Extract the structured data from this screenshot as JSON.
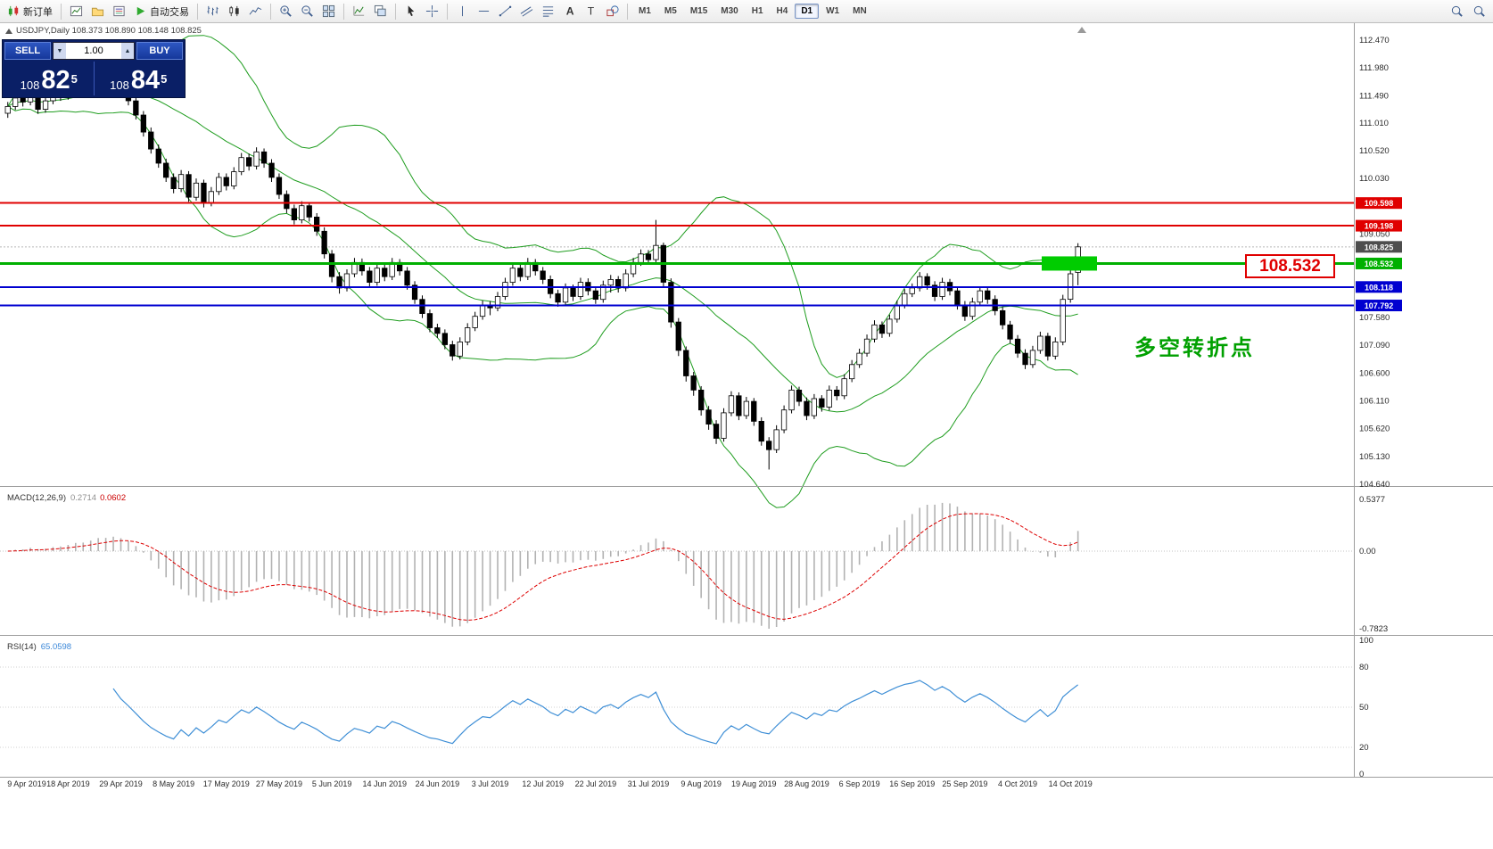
{
  "toolbar": {
    "groups": [
      {
        "items": [
          {
            "name": "new-order-button",
            "icon": "new-order",
            "label": "新订单"
          }
        ]
      },
      {
        "items": [
          {
            "name": "new-chart-button",
            "icon": "new-chart"
          },
          {
            "name": "profiles-button",
            "icon": "profiles"
          },
          {
            "name": "market-watch-button",
            "icon": "market-watch"
          },
          {
            "name": "auto-trading-button",
            "icon": "auto-play",
            "label": "自动交易"
          }
        ]
      },
      {
        "items": [
          {
            "name": "bar-chart-button",
            "icon": "bars"
          },
          {
            "name": "candlestick-chart-button",
            "icon": "candles"
          },
          {
            "name": "line-chart-button",
            "icon": "line-chart"
          }
        ]
      },
      {
        "items": [
          {
            "name": "zoom-in-button",
            "icon": "zoom-in"
          },
          {
            "name": "zoom-out-button",
            "icon": "zoom-out"
          },
          {
            "name": "tile-windows-button",
            "icon": "tile"
          }
        ]
      },
      {
        "items": [
          {
            "name": "indicators-button",
            "icon": "indicators"
          },
          {
            "name": "cascade-windows-button",
            "icon": "cascade"
          }
        ]
      },
      {
        "items": [
          {
            "name": "cursor-button",
            "icon": "cursor"
          },
          {
            "name": "crosshair-button",
            "icon": "crosshair"
          }
        ]
      },
      {
        "items": [
          {
            "name": "vertical-line-button",
            "icon": "vline"
          },
          {
            "name": "horizontal-line-button",
            "icon": "hline"
          },
          {
            "name": "trendline-button",
            "icon": "trendline"
          },
          {
            "name": "channel-button",
            "icon": "channel"
          },
          {
            "name": "fibonacci-button",
            "icon": "fibonacci"
          },
          {
            "name": "text-button",
            "icon": "text"
          },
          {
            "name": "text-label-button",
            "icon": "label"
          },
          {
            "name": "shapes-button",
            "icon": "shapes"
          }
        ]
      }
    ],
    "timeframes": {
      "list": [
        "M1",
        "M5",
        "M15",
        "M30",
        "H1",
        "H4",
        "D1",
        "W1",
        "MN"
      ],
      "active": "D1"
    },
    "right_items": [
      {
        "name": "search-button",
        "icon": "search"
      },
      {
        "name": "find-symbol-button",
        "icon": "search"
      }
    ]
  },
  "chart": {
    "symbol_line": "USDJPY,Daily 108.373 108.890 108.148 108.825",
    "trade_panel": {
      "sell_label": "SELL",
      "buy_label": "BUY",
      "volume": "1.00",
      "down_glyph": "▼",
      "up_glyph": "▲",
      "sell_price": {
        "prefix": "108",
        "big": "82",
        "sup": "5"
      },
      "buy_price": {
        "prefix": "108",
        "big": "84",
        "sup": "5"
      }
    },
    "price_ticks": [
      "112.470",
      "111.980",
      "111.490",
      "111.010",
      "110.520",
      "110.030",
      "109.550",
      "109.050",
      "108.570",
      "108.080",
      "107.580",
      "107.090",
      "106.600",
      "106.110",
      "105.620",
      "105.130",
      "104.640"
    ],
    "hlines": [
      {
        "price": 109.598,
        "label": "109.598",
        "color": "#e00000",
        "width": 2
      },
      {
        "price": 109.198,
        "label": "109.198",
        "color": "#e00000",
        "width": 2
      },
      {
        "price": 108.532,
        "label": "108.532",
        "color": "#00b000",
        "width": 3
      },
      {
        "price": 108.118,
        "label": "108.118",
        "color": "#0000d0",
        "width": 2
      },
      {
        "price": 107.792,
        "label": "107.792",
        "color": "#0000d0",
        "width": 2
      }
    ],
    "current_price": {
      "label": "108.825",
      "value": 108.825,
      "color": "#4d4d4d"
    },
    "annotations": {
      "price_label": "108.532",
      "note": "多空转折点",
      "highlight_price": 108.532
    }
  },
  "macd": {
    "title": "MACD(12,26,9)",
    "main": "0.2714",
    "signal": "0.0602",
    "scale": [
      "0.5377",
      "0.00",
      "-0.7823"
    ]
  },
  "rsi": {
    "title": "RSI(14)",
    "value": "65.0598",
    "scale": [
      "100",
      "80",
      "50",
      "20",
      "0"
    ]
  },
  "chart_data": {
    "type": "candlestick",
    "symbol": "USDJPY",
    "timeframe": "Daily",
    "current_bar": {
      "open": 108.373,
      "high": 108.89,
      "low": 108.148,
      "close": 108.825
    },
    "y_range": [
      104.64,
      112.74
    ],
    "x_labels": [
      "9 Apr 2019",
      "18 Apr 2019",
      "29 Apr 2019",
      "8 May 2019",
      "17 May 2019",
      "27 May 2019",
      "5 Jun 2019",
      "14 Jun 2019",
      "24 Jun 2019",
      "3 Jul 2019",
      "12 Jul 2019",
      "22 Jul 2019",
      "31 Jul 2019",
      "9 Aug 2019",
      "19 Aug 2019",
      "28 Aug 2019",
      "6 Sep 2019",
      "16 Sep 2019",
      "25 Sep 2019",
      "4 Oct 2019",
      "14 Oct 2019"
    ],
    "x_label_first_bar": 1,
    "x_label_step": 7,
    "indicators": {
      "bollinger": {
        "period": 20,
        "deviation": 2
      },
      "macd": {
        "fast": 12,
        "slow": 26,
        "signal": 9,
        "last_main": 0.2714,
        "last_signal": 0.0602
      },
      "rsi": {
        "period": 14,
        "last": 65.0598
      }
    },
    "ohlc": [
      [
        111.18,
        111.38,
        111.1,
        111.3
      ],
      [
        111.3,
        111.53,
        111.24,
        111.45
      ],
      [
        111.45,
        111.51,
        111.3,
        111.38
      ],
      [
        111.38,
        111.6,
        111.32,
        111.52
      ],
      [
        111.52,
        111.58,
        111.17,
        111.25
      ],
      [
        111.25,
        111.48,
        111.19,
        111.4
      ],
      [
        111.4,
        111.63,
        111.34,
        111.55
      ],
      [
        111.55,
        111.62,
        111.4,
        111.48
      ],
      [
        111.48,
        111.7,
        111.42,
        111.62
      ],
      [
        111.62,
        111.78,
        111.55,
        111.7
      ],
      [
        111.7,
        111.76,
        111.5,
        111.58
      ],
      [
        111.58,
        111.86,
        111.52,
        111.78
      ],
      [
        111.78,
        112.05,
        111.72,
        111.9
      ],
      [
        111.9,
        111.97,
        111.64,
        111.72
      ],
      [
        111.72,
        111.93,
        111.66,
        111.85
      ],
      [
        111.85,
        111.91,
        111.52,
        111.6
      ],
      [
        111.6,
        111.67,
        111.32,
        111.4
      ],
      [
        111.4,
        111.48,
        111.07,
        111.15
      ],
      [
        111.15,
        111.22,
        110.77,
        110.85
      ],
      [
        110.85,
        110.93,
        110.47,
        110.55
      ],
      [
        110.55,
        110.63,
        110.22,
        110.3
      ],
      [
        110.3,
        110.38,
        109.97,
        110.05
      ],
      [
        110.05,
        110.12,
        109.77,
        109.85
      ],
      [
        109.85,
        110.18,
        109.79,
        110.1
      ],
      [
        110.1,
        110.16,
        109.62,
        109.7
      ],
      [
        109.7,
        110.03,
        109.64,
        109.95
      ],
      [
        109.95,
        110.01,
        109.52,
        109.6
      ],
      [
        109.6,
        109.88,
        109.54,
        109.8
      ],
      [
        109.8,
        110.13,
        109.74,
        110.05
      ],
      [
        110.05,
        110.12,
        109.82,
        109.9
      ],
      [
        109.9,
        110.23,
        109.84,
        110.15
      ],
      [
        110.15,
        110.48,
        110.09,
        110.4
      ],
      [
        110.4,
        110.47,
        110.17,
        110.25
      ],
      [
        110.25,
        110.58,
        110.19,
        110.5
      ],
      [
        110.5,
        110.56,
        110.22,
        110.3
      ],
      [
        110.3,
        110.37,
        109.97,
        110.05
      ],
      [
        110.05,
        110.12,
        109.67,
        109.75
      ],
      [
        109.75,
        109.82,
        109.42,
        109.5
      ],
      [
        109.5,
        109.57,
        109.22,
        109.3
      ],
      [
        109.3,
        109.63,
        109.24,
        109.55
      ],
      [
        109.55,
        109.61,
        109.27,
        109.35
      ],
      [
        109.35,
        109.42,
        109.02,
        109.1
      ],
      [
        109.1,
        109.17,
        108.62,
        108.7
      ],
      [
        108.7,
        108.77,
        108.2,
        108.3
      ],
      [
        108.3,
        108.38,
        108.0,
        108.1
      ],
      [
        108.1,
        108.43,
        108.04,
        108.35
      ],
      [
        108.35,
        108.63,
        108.29,
        108.55
      ],
      [
        108.55,
        108.62,
        108.32,
        108.4
      ],
      [
        108.4,
        108.47,
        108.12,
        108.2
      ],
      [
        108.2,
        108.53,
        108.14,
        108.45
      ],
      [
        108.45,
        108.52,
        108.22,
        108.3
      ],
      [
        108.3,
        108.63,
        108.24,
        108.55
      ],
      [
        108.55,
        108.61,
        108.32,
        108.4
      ],
      [
        108.4,
        108.47,
        108.07,
        108.15
      ],
      [
        108.15,
        108.22,
        107.82,
        107.9
      ],
      [
        107.9,
        107.97,
        107.57,
        107.65
      ],
      [
        107.65,
        107.72,
        107.32,
        107.4
      ],
      [
        107.4,
        107.47,
        107.22,
        107.3
      ],
      [
        107.3,
        107.37,
        107.02,
        107.1
      ],
      [
        107.1,
        107.17,
        106.82,
        106.9
      ],
      [
        106.9,
        107.23,
        106.84,
        107.15
      ],
      [
        107.15,
        107.48,
        107.09,
        107.4
      ],
      [
        107.4,
        107.68,
        107.34,
        107.6
      ],
      [
        107.6,
        107.88,
        107.54,
        107.8
      ],
      [
        107.8,
        107.87,
        107.62,
        107.75
      ],
      [
        107.75,
        108.03,
        107.69,
        107.95
      ],
      [
        107.95,
        108.28,
        107.89,
        108.2
      ],
      [
        108.2,
        108.53,
        108.14,
        108.45
      ],
      [
        108.45,
        108.52,
        108.22,
        108.3
      ],
      [
        108.3,
        108.63,
        108.24,
        108.55
      ],
      [
        108.55,
        108.61,
        108.32,
        108.4
      ],
      [
        108.4,
        108.47,
        108.17,
        108.25
      ],
      [
        108.25,
        108.32,
        107.92,
        108.0
      ],
      [
        108.0,
        108.07,
        107.77,
        107.85
      ],
      [
        107.85,
        108.18,
        107.79,
        108.1
      ],
      [
        108.1,
        108.16,
        107.87,
        107.95
      ],
      [
        107.95,
        108.28,
        107.89,
        108.2
      ],
      [
        108.2,
        108.27,
        107.97,
        108.05
      ],
      [
        108.05,
        108.12,
        107.82,
        107.9
      ],
      [
        107.9,
        108.23,
        107.84,
        108.15
      ],
      [
        108.15,
        108.33,
        108.02,
        108.25
      ],
      [
        108.25,
        108.31,
        108.02,
        108.1
      ],
      [
        108.1,
        108.43,
        108.04,
        108.35
      ],
      [
        108.35,
        108.63,
        108.29,
        108.55
      ],
      [
        108.55,
        108.78,
        108.49,
        108.7
      ],
      [
        108.7,
        108.77,
        108.52,
        108.6
      ],
      [
        108.6,
        109.3,
        108.54,
        108.85
      ],
      [
        108.85,
        108.9,
        108.1,
        108.2
      ],
      [
        108.2,
        108.27,
        107.4,
        107.5
      ],
      [
        107.5,
        107.57,
        106.9,
        107.0
      ],
      [
        107.0,
        107.07,
        106.45,
        106.55
      ],
      [
        106.55,
        106.62,
        106.2,
        106.3
      ],
      [
        106.3,
        106.37,
        105.85,
        105.95
      ],
      [
        105.95,
        106.02,
        105.6,
        105.7
      ],
      [
        105.7,
        105.77,
        105.35,
        105.45
      ],
      [
        105.45,
        105.98,
        105.39,
        105.9
      ],
      [
        105.9,
        106.28,
        105.84,
        106.2
      ],
      [
        106.2,
        106.26,
        105.77,
        105.85
      ],
      [
        105.85,
        106.18,
        105.79,
        106.1
      ],
      [
        106.1,
        106.16,
        105.67,
        105.75
      ],
      [
        105.75,
        105.82,
        105.32,
        105.4
      ],
      [
        105.4,
        105.47,
        104.9,
        105.25
      ],
      [
        105.25,
        105.68,
        105.19,
        105.6
      ],
      [
        105.6,
        106.03,
        105.54,
        105.95
      ],
      [
        105.95,
        106.38,
        105.89,
        106.3
      ],
      [
        106.3,
        106.36,
        106.02,
        106.1
      ],
      [
        106.1,
        106.17,
        105.77,
        105.85
      ],
      [
        105.85,
        106.23,
        105.79,
        106.15
      ],
      [
        106.15,
        106.21,
        105.92,
        106.0
      ],
      [
        106.0,
        106.38,
        105.94,
        106.3
      ],
      [
        106.3,
        106.37,
        106.12,
        106.2
      ],
      [
        106.2,
        106.58,
        106.14,
        106.5
      ],
      [
        106.5,
        106.83,
        106.44,
        106.75
      ],
      [
        106.75,
        107.03,
        106.69,
        106.95
      ],
      [
        106.95,
        107.28,
        106.89,
        107.2
      ],
      [
        107.2,
        107.53,
        107.14,
        107.45
      ],
      [
        107.45,
        107.51,
        107.22,
        107.3
      ],
      [
        107.3,
        107.63,
        107.24,
        107.55
      ],
      [
        107.55,
        107.88,
        107.49,
        107.8
      ],
      [
        107.8,
        108.08,
        107.74,
        108.0
      ],
      [
        108.0,
        108.18,
        107.94,
        108.1
      ],
      [
        108.1,
        108.38,
        108.04,
        108.3
      ],
      [
        108.3,
        108.36,
        108.07,
        108.15
      ],
      [
        108.15,
        108.22,
        107.87,
        107.95
      ],
      [
        107.95,
        108.28,
        107.89,
        108.2
      ],
      [
        108.2,
        108.26,
        107.97,
        108.05
      ],
      [
        108.05,
        108.12,
        107.72,
        107.8
      ],
      [
        107.8,
        107.87,
        107.52,
        107.6
      ],
      [
        107.6,
        107.93,
        107.54,
        107.85
      ],
      [
        107.85,
        108.13,
        107.79,
        108.05
      ],
      [
        108.05,
        108.11,
        107.82,
        107.9
      ],
      [
        107.9,
        107.97,
        107.62,
        107.7
      ],
      [
        107.7,
        107.77,
        107.37,
        107.45
      ],
      [
        107.45,
        107.52,
        107.12,
        107.2
      ],
      [
        107.2,
        107.27,
        106.87,
        106.95
      ],
      [
        106.95,
        107.02,
        106.67,
        106.75
      ],
      [
        106.75,
        107.08,
        106.69,
        107.0
      ],
      [
        107.0,
        107.33,
        106.94,
        107.25
      ],
      [
        107.25,
        107.31,
        106.82,
        106.9
      ],
      [
        106.9,
        107.23,
        106.84,
        107.15
      ],
      [
        107.15,
        107.98,
        107.09,
        107.9
      ],
      [
        107.9,
        108.43,
        107.84,
        108.35
      ],
      [
        108.373,
        108.89,
        108.148,
        108.825
      ]
    ]
  }
}
